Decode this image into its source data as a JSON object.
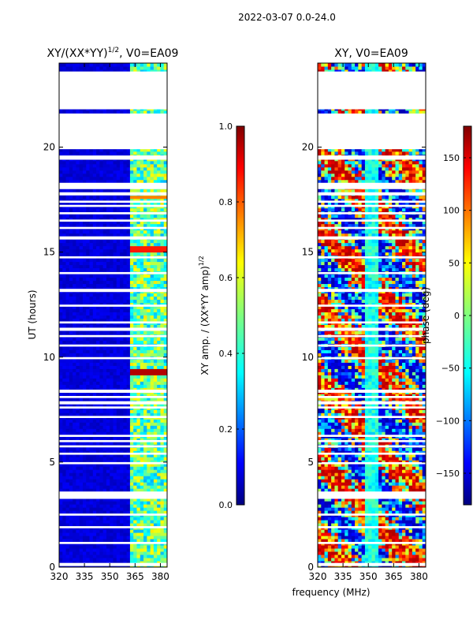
{
  "figure": {
    "suptitle": "2022-03-07 0.0-24.0",
    "xlabel": "frequency (MHz)",
    "ylabel": "UT (hours)"
  },
  "chart_data": [
    {
      "type": "heatmap",
      "title": "XY/(XX*YY)",
      "title_exp": "1/2",
      "title_suffix": ", V0=EA09",
      "x_ticks": [
        "320",
        "335",
        "350",
        "365",
        "380"
      ],
      "x_tick_values": [
        320,
        335,
        350,
        365,
        380
      ],
      "xlim": [
        320,
        384
      ],
      "ylim": [
        0,
        24
      ],
      "y_ticks": [
        "0",
        "5",
        "10",
        "15",
        "20"
      ],
      "y_tick_values": [
        0,
        5,
        10,
        15,
        20
      ],
      "colorbar": {
        "label": "XY amp. / (XX*YY amp)",
        "label_exp": "1/2",
        "range": [
          0.0,
          1.0
        ],
        "ticks": [
          "0.0",
          "0.2",
          "0.4",
          "0.6",
          "0.8",
          "1.0"
        ],
        "tick_values": [
          0.0,
          0.2,
          0.4,
          0.6,
          0.8,
          1.0
        ],
        "colormap": "jet"
      }
    },
    {
      "type": "heatmap",
      "title": "XY, V0=EA09",
      "x_ticks": [
        "320",
        "335",
        "350",
        "365",
        "380"
      ],
      "x_tick_values": [
        320,
        335,
        350,
        365,
        380
      ],
      "xlim": [
        320,
        384
      ],
      "ylim": [
        0,
        24
      ],
      "y_ticks": [
        "0",
        "5",
        "10",
        "15",
        "20"
      ],
      "y_tick_values": [
        0,
        5,
        10,
        15,
        20
      ],
      "colorbar": {
        "label": "phase (deg)",
        "range": [
          -180,
          180
        ],
        "ticks": [
          "−150",
          "−100",
          "−50",
          "0",
          "50",
          "100",
          "150"
        ],
        "tick_values": [
          -150,
          -100,
          -50,
          0,
          50,
          100,
          150
        ],
        "colormap": "jet"
      }
    }
  ],
  "data_gaps_ut": [
    [
      0.05,
      0.2
    ],
    [
      1.1,
      1.2
    ],
    [
      1.85,
      1.95
    ],
    [
      2.45,
      2.55
    ],
    [
      3.25,
      3.6
    ],
    [
      4.9,
      5.0
    ],
    [
      5.35,
      5.45
    ],
    [
      5.7,
      5.8
    ],
    [
      5.95,
      6.05
    ],
    [
      6.2,
      6.3
    ],
    [
      7.1,
      7.2
    ],
    [
      7.55,
      7.65
    ],
    [
      7.75,
      7.9
    ],
    [
      8.05,
      8.15
    ],
    [
      8.3,
      8.45
    ],
    [
      9.9,
      10.0
    ],
    [
      10.5,
      10.6
    ],
    [
      10.95,
      11.05
    ],
    [
      11.25,
      11.4
    ],
    [
      11.6,
      11.7
    ],
    [
      12.4,
      12.5
    ],
    [
      13.1,
      13.25
    ],
    [
      13.95,
      14.05
    ],
    [
      14.7,
      14.8
    ],
    [
      15.6,
      15.75
    ],
    [
      16.1,
      16.2
    ],
    [
      16.45,
      16.55
    ],
    [
      16.8,
      16.9
    ],
    [
      17.15,
      17.25
    ],
    [
      17.35,
      17.45
    ],
    [
      17.7,
      17.85
    ],
    [
      18.0,
      18.3
    ],
    [
      19.4,
      19.6
    ],
    [
      19.9,
      21.6
    ],
    [
      21.8,
      23.6
    ]
  ]
}
